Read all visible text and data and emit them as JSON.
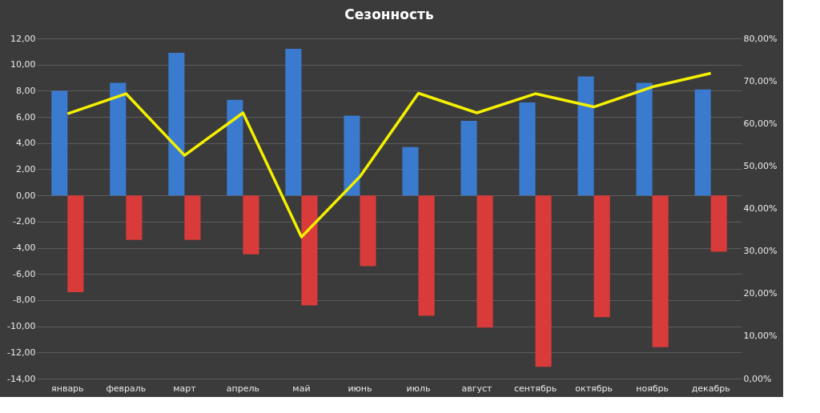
{
  "chart_data": {
    "type": "bar",
    "title": "Сезонность",
    "categories": [
      "январь",
      "февраль",
      "март",
      "апрель",
      "май",
      "июнь",
      "июль",
      "август",
      "сентябрь",
      "октябрь",
      "ноябрь",
      "декабрь"
    ],
    "series": [
      {
        "color": "#3a7bd0",
        "values": [
          8.0,
          8.6,
          10.9,
          7.3,
          11.2,
          6.1,
          3.7,
          5.7,
          7.1,
          9.1,
          8.6,
          8.1
        ]
      },
      {
        "color": "#d93b3b",
        "values": [
          -7.4,
          -3.4,
          -3.4,
          -4.5,
          -8.4,
          -5.4,
          -9.2,
          -10.1,
          -13.1,
          -9.3,
          -11.6,
          -4.3
        ]
      },
      {
        "type": "line",
        "axis": "y2",
        "color": "#f4f000",
        "values": [
          62.3,
          67.0,
          52.5,
          62.5,
          33.3,
          47.5,
          67.1,
          62.5,
          67.0,
          63.9,
          68.6,
          71.8
        ]
      }
    ],
    "ylim": [
      -14,
      12
    ],
    "yticks": [
      {
        "value": -14,
        "label": "-14,00"
      },
      {
        "value": -12,
        "label": "-12,00"
      },
      {
        "value": -10,
        "label": "-10,00"
      },
      {
        "value": -8,
        "label": "-8,00"
      },
      {
        "value": -6,
        "label": "-6,00"
      },
      {
        "value": -4,
        "label": "-4,00"
      },
      {
        "value": -2,
        "label": "-2,00"
      },
      {
        "value": 0,
        "label": "0,00"
      },
      {
        "value": 2,
        "label": "2,00"
      },
      {
        "value": 4,
        "label": "4,00"
      },
      {
        "value": 6,
        "label": "6,00"
      },
      {
        "value": 8,
        "label": "8,00"
      },
      {
        "value": 10,
        "label": "10,00"
      },
      {
        "value": 12,
        "label": "12,00"
      }
    ],
    "y2lim": [
      0,
      80
    ],
    "y2ticks": [
      {
        "value": 0,
        "label": "0,00%"
      },
      {
        "value": 10,
        "label": "10,00%"
      },
      {
        "value": 20,
        "label": "20,00%"
      },
      {
        "value": 30,
        "label": "30,00%"
      },
      {
        "value": 40,
        "label": "40,00%"
      },
      {
        "value": 50,
        "label": "50,00%"
      },
      {
        "value": 60,
        "label": "60,00%"
      },
      {
        "value": 70,
        "label": "70,00%"
      },
      {
        "value": 80,
        "label": "80,00%"
      }
    ],
    "grid": "y",
    "legend": false,
    "marker": "none",
    "line_style": "solid"
  }
}
